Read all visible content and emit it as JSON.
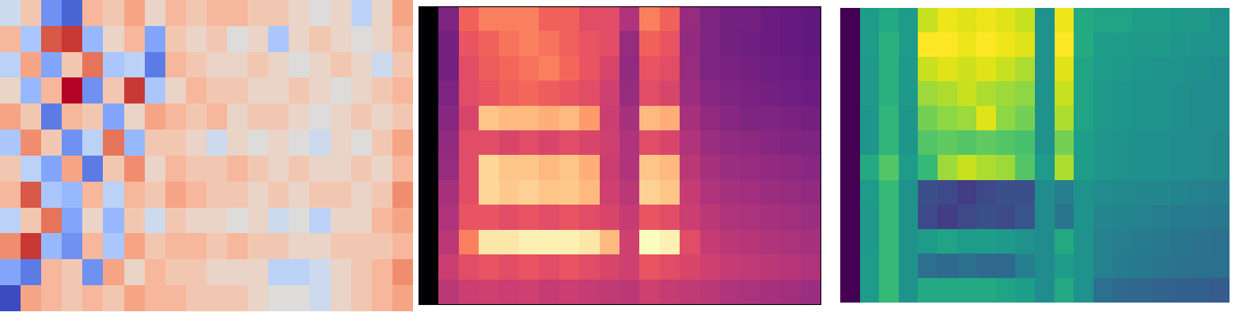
{
  "chart_data": [
    {
      "type": "heatmap",
      "tick_labels": false,
      "color": "coolwarm",
      "cells": [
        [
          -0.1,
          0.2,
          -0.6,
          -0.8,
          0.3,
          0.2,
          0.4,
          0.1,
          0.3,
          0.2,
          0.3,
          0.3,
          0.2,
          0.2,
          0.1,
          0.0,
          0.1,
          -0.2,
          0.1,
          0.4
        ],
        [
          0.3,
          -0.3,
          0.7,
          0.8,
          -0.4,
          0.1,
          0.3,
          -0.5,
          0.2,
          0.1,
          0.2,
          0.0,
          0.1,
          -0.3,
          0.1,
          0.2,
          0.1,
          0.0,
          0.1,
          0.3
        ],
        [
          -0.2,
          0.4,
          -0.5,
          0.2,
          0.6,
          -0.3,
          -0.2,
          -0.7,
          0.3,
          0.2,
          0.1,
          0.1,
          0.2,
          0.1,
          0.0,
          0.1,
          0.2,
          0.1,
          -0.1,
          0.2
        ],
        [
          0.1,
          -0.4,
          0.3,
          0.9,
          -0.6,
          0.2,
          0.8,
          -0.3,
          0.1,
          0.3,
          0.2,
          0.2,
          0.1,
          0.1,
          0.2,
          0.1,
          0.0,
          0.1,
          0.2,
          0.3
        ],
        [
          0.4,
          0.2,
          -0.7,
          0.3,
          0.2,
          -0.5,
          0.1,
          0.4,
          0.3,
          0.2,
          0.3,
          0.1,
          0.2,
          0.2,
          0.1,
          0.0,
          0.1,
          0.2,
          0.1,
          0.2
        ],
        [
          -0.3,
          0.5,
          0.2,
          -0.6,
          -0.2,
          0.6,
          -0.4,
          0.2,
          0.2,
          0.1,
          -0.1,
          0.1,
          0.0,
          0.1,
          0.0,
          -0.1,
          0.1,
          0.0,
          0.2,
          0.4
        ],
        [
          0.2,
          -0.2,
          -0.5,
          0.4,
          -0.7,
          0.2,
          0.5,
          0.1,
          0.3,
          0.2,
          0.2,
          0.3,
          0.2,
          0.1,
          0.2,
          0.1,
          0.1,
          0.2,
          0.1,
          0.3
        ],
        [
          0.3,
          0.7,
          -0.3,
          -0.4,
          0.3,
          -0.2,
          0.3,
          0.2,
          0.4,
          0.3,
          0.2,
          0.2,
          0.1,
          0.2,
          0.1,
          0.2,
          0.2,
          0.1,
          0.2,
          0.5
        ],
        [
          -0.2,
          0.2,
          0.6,
          -0.5,
          0.1,
          -0.4,
          0.2,
          -0.1,
          0.2,
          0.1,
          0.1,
          0.0,
          0.1,
          -0.1,
          0.0,
          -0.2,
          0.1,
          0.1,
          0.3,
          0.4
        ],
        [
          0.5,
          0.8,
          -0.4,
          -0.6,
          0.3,
          -0.3,
          0.4,
          0.2,
          0.3,
          0.3,
          0.2,
          0.3,
          0.2,
          0.2,
          0.1,
          0.1,
          0.2,
          0.2,
          0.2,
          0.3
        ],
        [
          -0.5,
          -0.7,
          0.3,
          0.2,
          -0.6,
          0.4,
          0.1,
          0.3,
          0.2,
          0.2,
          0.1,
          0.1,
          0.1,
          -0.2,
          -0.2,
          -0.1,
          0.1,
          0.2,
          0.3,
          0.5
        ],
        [
          -0.9,
          0.4,
          0.3,
          0.2,
          0.3,
          0.2,
          0.4,
          0.3,
          0.3,
          0.2,
          0.2,
          0.2,
          0.1,
          0.0,
          0.0,
          -0.1,
          0.1,
          0.2,
          0.3,
          0.4
        ]
      ]
    },
    {
      "type": "heatmap",
      "tick_labels": false,
      "color": "magma",
      "cells": [
        [
          -90,
          -60,
          -35,
          -30,
          -30,
          -30,
          -35,
          -35,
          -40,
          -40,
          -50,
          -30,
          -35,
          -55,
          -60,
          -62,
          -62,
          -64,
          -65,
          -66
        ],
        [
          -90,
          -62,
          -38,
          -35,
          -32,
          -30,
          -32,
          -35,
          -38,
          -40,
          -55,
          -35,
          -38,
          -56,
          -60,
          -62,
          -63,
          -64,
          -65,
          -66
        ],
        [
          -90,
          -62,
          -40,
          -36,
          -34,
          -32,
          -30,
          -34,
          -38,
          -42,
          -56,
          -38,
          -40,
          -55,
          -60,
          -61,
          -62,
          -63,
          -64,
          -65
        ],
        [
          -90,
          -60,
          -40,
          -38,
          -35,
          -34,
          -36,
          -38,
          -40,
          -44,
          -55,
          -40,
          -42,
          -54,
          -58,
          -60,
          -61,
          -62,
          -63,
          -64
        ],
        [
          -90,
          -58,
          -42,
          -18,
          -20,
          -20,
          -22,
          -20,
          -25,
          -45,
          -52,
          -20,
          -22,
          -52,
          -56,
          -58,
          -60,
          -60,
          -61,
          -62
        ],
        [
          -90,
          -56,
          -40,
          -40,
          -42,
          -40,
          -42,
          -40,
          -42,
          -44,
          -50,
          -40,
          -42,
          -50,
          -54,
          -56,
          -57,
          -58,
          -59,
          -60
        ],
        [
          -90,
          -55,
          -40,
          -15,
          -18,
          -18,
          -20,
          -18,
          -22,
          -45,
          -50,
          -18,
          -20,
          -48,
          -52,
          -54,
          -55,
          -56,
          -57,
          -58
        ],
        [
          -90,
          -52,
          -40,
          -15,
          -17,
          -16,
          -18,
          -17,
          -20,
          -44,
          -48,
          -16,
          -18,
          -46,
          -50,
          -52,
          -53,
          -54,
          -55,
          -56
        ],
        [
          -90,
          -50,
          -38,
          -38,
          -40,
          -38,
          -40,
          -38,
          -40,
          -42,
          -46,
          -38,
          -40,
          -45,
          -48,
          -50,
          -51,
          -52,
          -53,
          -54
        ],
        [
          -90,
          -48,
          -30,
          -12,
          -12,
          -10,
          -10,
          -10,
          -12,
          -20,
          -44,
          -8,
          -10,
          -40,
          -46,
          -48,
          -49,
          -50,
          -51,
          -52
        ],
        [
          -90,
          -45,
          -40,
          -38,
          -40,
          -38,
          -40,
          -38,
          -40,
          -42,
          -44,
          -38,
          -40,
          -42,
          -44,
          -46,
          -47,
          -48,
          -49,
          -50
        ],
        [
          -90,
          -48,
          -45,
          -44,
          -45,
          -44,
          -46,
          -45,
          -46,
          -47,
          -48,
          -44,
          -46,
          -47,
          -48,
          -50,
          -51,
          -52,
          -53,
          -54
        ]
      ]
    },
    {
      "type": "heatmap",
      "tick_labels": false,
      "color": "viridis",
      "cells": [
        [
          -90,
          -45,
          -40,
          -45,
          -15,
          -10,
          -12,
          -10,
          -12,
          -15,
          -48,
          -10,
          -40,
          -42,
          -42,
          -44,
          -44,
          -46,
          -46,
          -48
        ],
        [
          -90,
          -45,
          -38,
          -45,
          -8,
          -8,
          -10,
          -8,
          -10,
          -12,
          -48,
          -8,
          -40,
          -44,
          -45,
          -46,
          -46,
          -47,
          -48,
          -48
        ],
        [
          -90,
          -46,
          -38,
          -46,
          -15,
          -12,
          -14,
          -12,
          -15,
          -18,
          -48,
          -12,
          -42,
          -45,
          -46,
          -47,
          -48,
          -48,
          -49,
          -50
        ],
        [
          -90,
          -46,
          -38,
          -46,
          -20,
          -18,
          -15,
          -18,
          -20,
          -22,
          -48,
          -15,
          -42,
          -46,
          -47,
          -48,
          -48,
          -49,
          -50,
          -50
        ],
        [
          -90,
          -47,
          -36,
          -47,
          -25,
          -22,
          -20,
          -12,
          -22,
          -25,
          -48,
          -18,
          -42,
          -46,
          -47,
          -48,
          -48,
          -49,
          -50,
          -50
        ],
        [
          -90,
          -47,
          -36,
          -47,
          -30,
          -28,
          -30,
          -28,
          -30,
          -32,
          -48,
          -25,
          -44,
          -47,
          -48,
          -49,
          -49,
          -50,
          -50,
          -51
        ],
        [
          -90,
          -40,
          -30,
          -45,
          -35,
          -20,
          -15,
          -18,
          -20,
          -30,
          -45,
          -18,
          -44,
          -47,
          -48,
          -49,
          -49,
          -50,
          -50,
          -51
        ],
        [
          -90,
          -45,
          -35,
          -48,
          -70,
          -72,
          -75,
          -72,
          -70,
          -70,
          -50,
          -55,
          -48,
          -50,
          -51,
          -52,
          -52,
          -53,
          -54,
          -55
        ],
        [
          -90,
          -46,
          -35,
          -48,
          -72,
          -75,
          -72,
          -70,
          -72,
          -68,
          -50,
          -58,
          -48,
          -52,
          -53,
          -54,
          -55,
          -56,
          -56,
          -57
        ],
        [
          -90,
          -46,
          -35,
          -48,
          -45,
          -42,
          -45,
          -44,
          -46,
          -48,
          -50,
          -40,
          -48,
          -54,
          -55,
          -56,
          -57,
          -58,
          -59,
          -60
        ],
        [
          -90,
          -45,
          -35,
          -48,
          -60,
          -62,
          -60,
          -62,
          -62,
          -55,
          -50,
          -45,
          -48,
          -54,
          -56,
          -57,
          -58,
          -59,
          -60,
          -60
        ],
        [
          -90,
          -45,
          -35,
          -48,
          -40,
          -40,
          -40,
          -40,
          -42,
          -44,
          -50,
          -40,
          -48,
          -60,
          -62,
          -63,
          -64,
          -65,
          -65,
          -66
        ]
      ]
    }
  ]
}
